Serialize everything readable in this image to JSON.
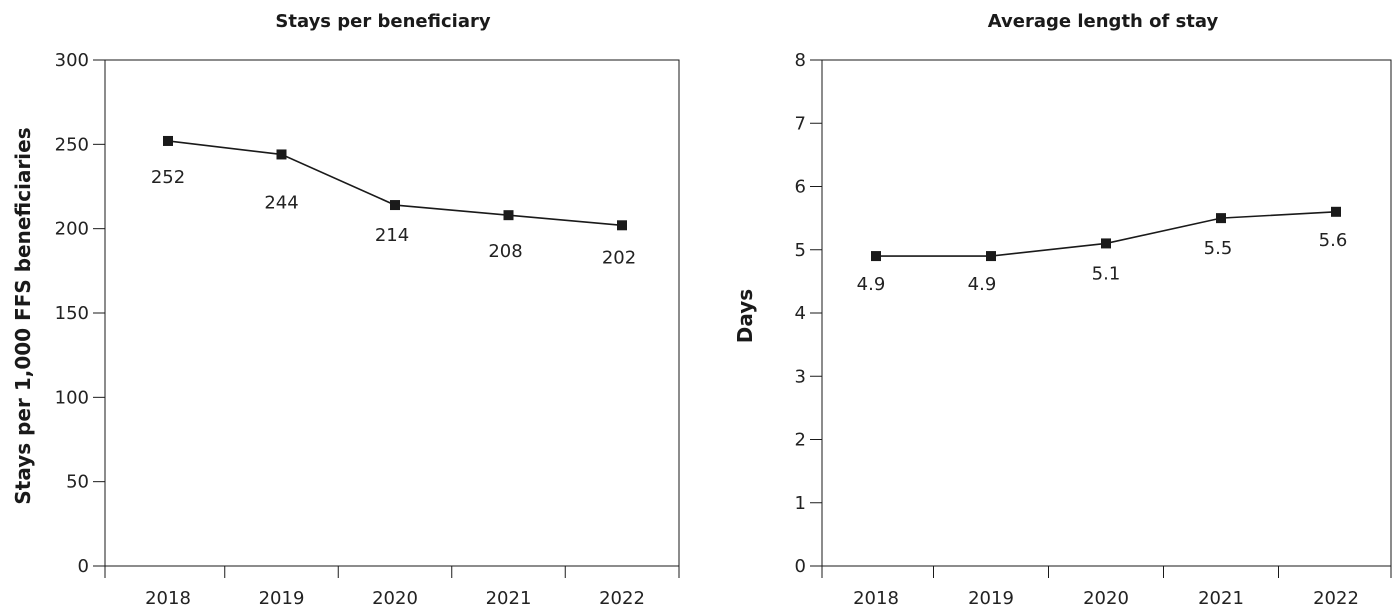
{
  "chart_data": [
    {
      "type": "line",
      "title": "Stays per beneficiary",
      "xlabel": "",
      "ylabel": "Stays per 1,000 FFS beneficiaries",
      "categories": [
        "2018",
        "2019",
        "2020",
        "2021",
        "2022"
      ],
      "series": [
        {
          "values": [
            252,
            244,
            214,
            208,
            202
          ],
          "labels": [
            "252",
            "244",
            "214",
            "208",
            "202"
          ]
        }
      ],
      "ylim": [
        0,
        300
      ],
      "yticks": [
        "0",
        "50",
        "100",
        "150",
        "200",
        "250",
        "300"
      ],
      "grid": false,
      "legend": "none",
      "colors": {
        "line": "#1a1a1a",
        "marker": "#1a1a1a"
      }
    },
    {
      "type": "line",
      "title": "Average length of stay",
      "xlabel": "",
      "ylabel": "Days",
      "categories": [
        "2018",
        "2019",
        "2020",
        "2021",
        "2022"
      ],
      "series": [
        {
          "values": [
            4.9,
            4.9,
            5.1,
            5.5,
            5.6
          ],
          "labels": [
            "4.9",
            "4.9",
            "5.1",
            "5.5",
            "5.6"
          ]
        }
      ],
      "ylim": [
        0,
        8
      ],
      "yticks": [
        "0",
        "1",
        "2",
        "3",
        "4",
        "5",
        "6",
        "7",
        "8"
      ],
      "grid": false,
      "legend": "none",
      "colors": {
        "line": "#1a1a1a",
        "marker": "#1a1a1a"
      }
    }
  ]
}
